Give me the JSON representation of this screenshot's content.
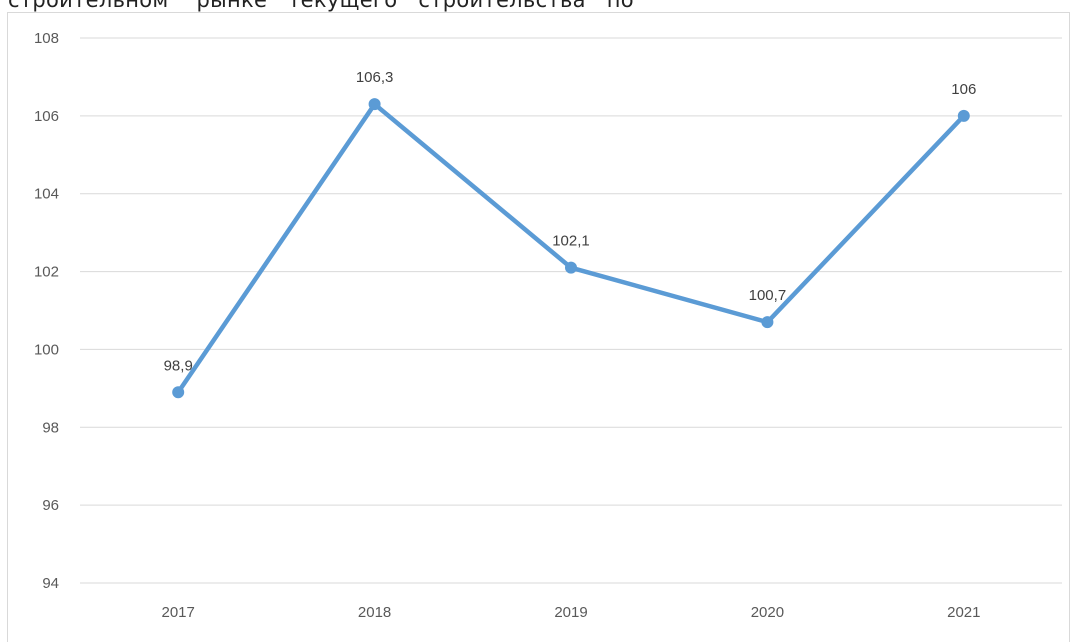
{
  "header_text": "строительном    рынке   текущего   строительства   по",
  "chart_data": {
    "type": "line",
    "categories": [
      "2017",
      "2018",
      "2019",
      "2020",
      "2021"
    ],
    "series": [
      {
        "values": [
          98.9,
          106.3,
          102.1,
          100.7,
          106
        ],
        "data_labels": [
          "98,9",
          "106,3",
          "102,1",
          "100,7",
          "106"
        ],
        "color": "#5b9bd5"
      }
    ],
    "ylim": [
      94,
      108
    ],
    "yticks": [
      "94",
      "96",
      "98",
      "100",
      "102",
      "104",
      "106",
      "108"
    ],
    "grid": true,
    "gridline_color": "#d9d9d9",
    "xlabel": "",
    "ylabel": "",
    "title": ""
  }
}
